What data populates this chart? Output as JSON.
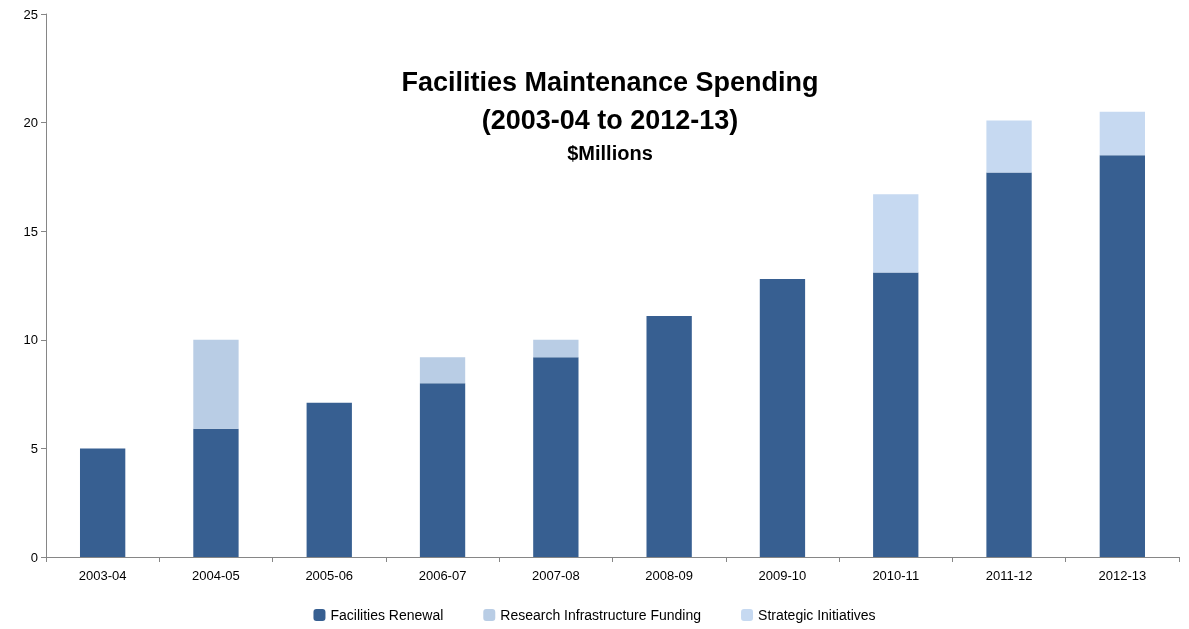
{
  "chart_data": {
    "type": "bar",
    "title": "Facilities Maintenance Spending\n(2003-04 to 2012-13)",
    "subtitle": "$Millions",
    "categories": [
      "2003-04",
      "2004-05",
      "2005-06",
      "2006-07",
      "2007-08",
      "2008-09",
      "2009-10",
      "2010-11",
      "2011-12",
      "2012-13"
    ],
    "series": [
      {
        "name": "Facilities Renewal",
        "color": "#375f91",
        "values": [
          5.0,
          5.9,
          7.1,
          8.0,
          9.2,
          11.1,
          12.8,
          13.1,
          17.7,
          18.5
        ]
      },
      {
        "name": "Research Infrastructure Funding",
        "color": "#b9cde5",
        "values": [
          null,
          4.1,
          null,
          1.2,
          0.8,
          null,
          null,
          null,
          null,
          null
        ]
      },
      {
        "name": "Strategic Initiatives",
        "color": "#c6d9f1",
        "values": [
          null,
          null,
          null,
          null,
          null,
          null,
          null,
          3.6,
          2.4,
          2.0
        ]
      }
    ],
    "stacked": true,
    "ylim": [
      0,
      25
    ],
    "yticks": [
      0,
      5,
      10,
      15,
      20,
      25
    ],
    "grid": false,
    "legend": "bottom"
  }
}
